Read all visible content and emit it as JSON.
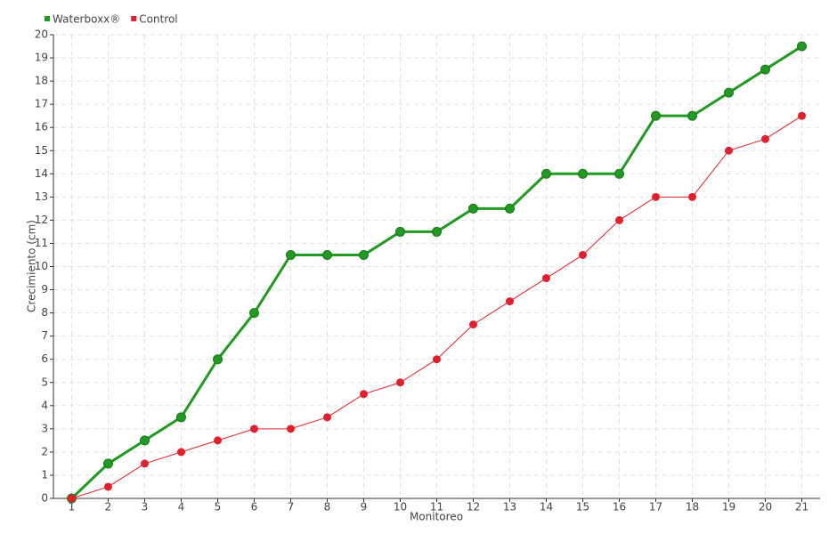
{
  "chart_data": {
    "type": "line",
    "x_label": "Monitoreo",
    "y_label": "Crecimiento (cm)",
    "x": [
      1,
      2,
      3,
      4,
      5,
      6,
      7,
      8,
      9,
      10,
      11,
      12,
      13,
      14,
      15,
      16,
      17,
      18,
      19,
      20,
      21
    ],
    "series": [
      {
        "name": "Waterboxx®",
        "color": "#229922",
        "values": [
          0,
          1.5,
          2.5,
          3.5,
          6,
          8,
          10.5,
          10.5,
          10.5,
          11.5,
          11.5,
          12.5,
          12.5,
          14,
          14,
          14,
          16.5,
          16.5,
          17.5,
          18.5,
          19.5
        ]
      },
      {
        "name": "Control",
        "color": "#e0202e",
        "values": [
          0,
          0.5,
          1.5,
          2,
          2.5,
          3,
          3,
          3.5,
          4.5,
          5,
          6,
          7.5,
          8.5,
          9.5,
          10.5,
          12,
          13,
          13,
          15,
          15.5,
          16.5
        ]
      }
    ],
    "xlim": [
      0.5,
      21.5
    ],
    "xticks": [
      1,
      2,
      3,
      4,
      5,
      6,
      7,
      8,
      9,
      10,
      11,
      12,
      13,
      14,
      15,
      16,
      17,
      18,
      19,
      20,
      21
    ],
    "ylim": [
      0,
      20
    ],
    "yticks": [
      0,
      1,
      2,
      3,
      4,
      5,
      6,
      7,
      8,
      9,
      10,
      11,
      12,
      13,
      14,
      15,
      16,
      17,
      18,
      19,
      20
    ],
    "grid": true,
    "legend": "top-left"
  }
}
